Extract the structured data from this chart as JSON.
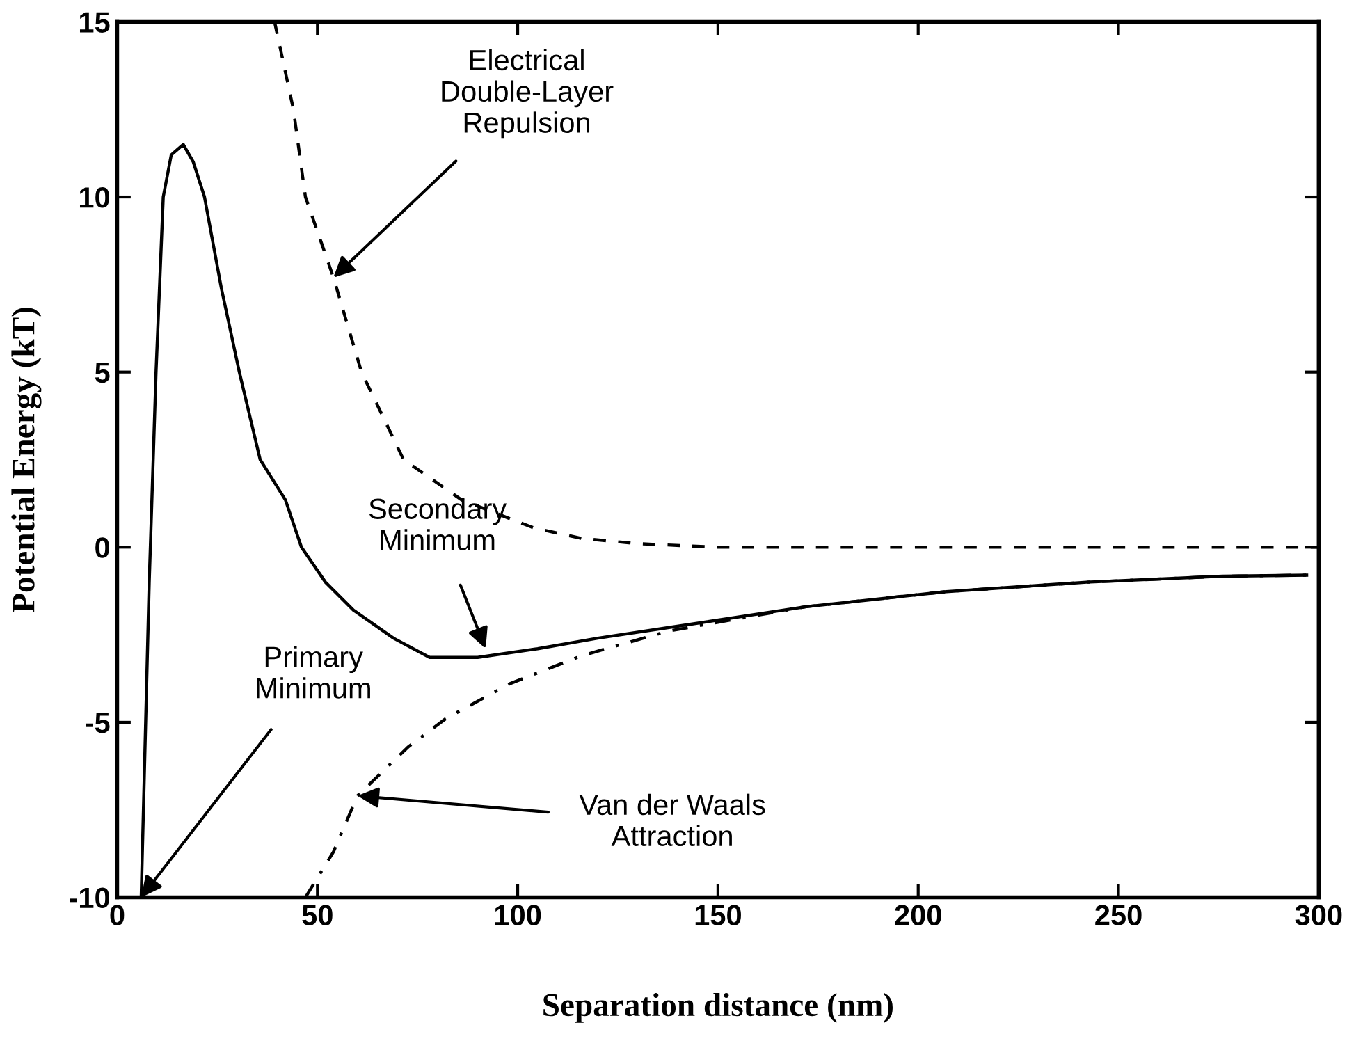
{
  "chart_data": {
    "type": "line",
    "xlabel": "Separation distance (nm)",
    "ylabel": "Potential Energy (kT)",
    "xlim": [
      0,
      300
    ],
    "ylim": [
      -10,
      15
    ],
    "xticks": [
      0,
      50,
      100,
      150,
      200,
      250,
      300
    ],
    "yticks": [
      -10,
      -5,
      0,
      5,
      10,
      15
    ],
    "grid": false,
    "marker": "none",
    "series": [
      {
        "color": "#000000",
        "line_style": "solid",
        "x": [
          6,
          8,
          9.7,
          11.5,
          13.5,
          16.5,
          19,
          21.8,
          26,
          30.5,
          35.7,
          42,
          46,
          52,
          59,
          69,
          78,
          90,
          105,
          120,
          137.5,
          172,
          207,
          242,
          276,
          297
        ],
        "values": [
          -10,
          -1,
          5,
          10,
          11.2,
          11.5,
          11,
          10,
          7.4,
          5,
          2.5,
          1.35,
          0,
          -1,
          -1.8,
          -2.6,
          -3.15,
          -3.15,
          -2.9,
          -2.6,
          -2.3,
          -1.7,
          -1.27,
          -1.0,
          -0.83,
          -0.8
        ]
      },
      {
        "color": "#000000",
        "line_style": "dashed",
        "x": [
          39.3,
          44,
          47,
          54,
          61,
          71.5,
          86,
          104,
          116,
          130,
          150,
          200,
          250,
          300
        ],
        "values": [
          15,
          12.5,
          10,
          7.7,
          5,
          2.5,
          1.35,
          0.55,
          0.25,
          0.1,
          0,
          0,
          0,
          0
        ]
      },
      {
        "color": "#000000",
        "line_style": "dotted",
        "x": [
          47,
          54,
          60,
          72.7,
          82,
          98,
          116,
          137.5,
          172,
          207,
          242,
          276,
          297
        ],
        "values": [
          -10,
          -8.7,
          -7.1,
          -5.7,
          -4.9,
          -3.9,
          -3.1,
          -2.4,
          -1.7,
          -1.27,
          -1.0,
          -0.83,
          -0.8
        ]
      }
    ],
    "annotations": [
      {
        "text": "Electrical\nDouble-Layer\nRepulsion",
        "x": 54,
        "y": 7.7
      },
      {
        "text": "Secondary\nMinimum",
        "x": 92,
        "y": -2.9
      },
      {
        "text": "Primary\nMinimum",
        "x": 6,
        "y": -10
      },
      {
        "text": "Van der Waals\nAttraction",
        "x": 60,
        "y": -7.1
      }
    ]
  }
}
